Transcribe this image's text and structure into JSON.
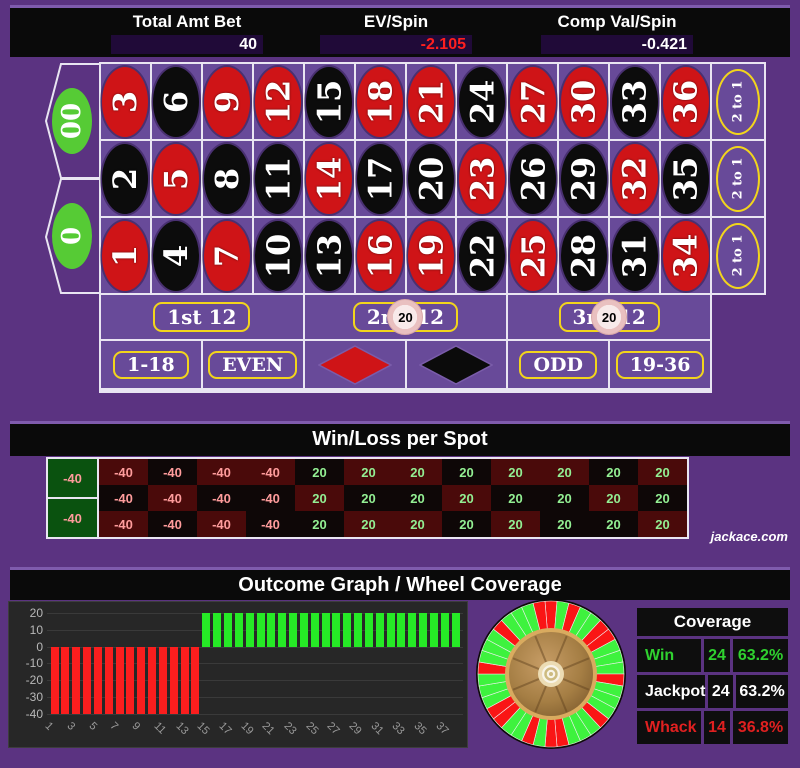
{
  "header": {
    "stats": [
      {
        "label": "Total Amt Bet",
        "value": "40",
        "value_color": "#ffffff"
      },
      {
        "label": "EV/Spin",
        "value": "-2.105",
        "value_color": "#ff1f1f"
      },
      {
        "label": "Comp Val/Spin",
        "value": "-0.421",
        "value_color": "#ffffff"
      }
    ]
  },
  "table": {
    "zeros": [
      {
        "label": "00"
      },
      {
        "label": "0"
      }
    ],
    "rows": [
      [
        {
          "n": "3",
          "c": "red"
        },
        {
          "n": "6",
          "c": "black"
        },
        {
          "n": "9",
          "c": "red"
        },
        {
          "n": "12",
          "c": "red"
        },
        {
          "n": "15",
          "c": "black"
        },
        {
          "n": "18",
          "c": "red"
        },
        {
          "n": "21",
          "c": "red"
        },
        {
          "n": "24",
          "c": "black"
        },
        {
          "n": "27",
          "c": "red"
        },
        {
          "n": "30",
          "c": "red"
        },
        {
          "n": "33",
          "c": "black"
        },
        {
          "n": "36",
          "c": "red"
        }
      ],
      [
        {
          "n": "2",
          "c": "black"
        },
        {
          "n": "5",
          "c": "red"
        },
        {
          "n": "8",
          "c": "black"
        },
        {
          "n": "11",
          "c": "black"
        },
        {
          "n": "14",
          "c": "red"
        },
        {
          "n": "17",
          "c": "black"
        },
        {
          "n": "20",
          "c": "black"
        },
        {
          "n": "23",
          "c": "red"
        },
        {
          "n": "26",
          "c": "black"
        },
        {
          "n": "29",
          "c": "black"
        },
        {
          "n": "32",
          "c": "red"
        },
        {
          "n": "35",
          "c": "black"
        }
      ],
      [
        {
          "n": "1",
          "c": "red"
        },
        {
          "n": "4",
          "c": "black"
        },
        {
          "n": "7",
          "c": "red"
        },
        {
          "n": "10",
          "c": "black"
        },
        {
          "n": "13",
          "c": "black"
        },
        {
          "n": "16",
          "c": "red"
        },
        {
          "n": "19",
          "c": "red"
        },
        {
          "n": "22",
          "c": "black"
        },
        {
          "n": "25",
          "c": "red"
        },
        {
          "n": "28",
          "c": "black"
        },
        {
          "n": "31",
          "c": "black"
        },
        {
          "n": "34",
          "c": "red"
        }
      ]
    ],
    "column_bets": [
      "2 to 1",
      "2 to 1",
      "2 to 1"
    ],
    "dozens": [
      {
        "label": "1st 12",
        "chip": null
      },
      {
        "label": "2nd 12",
        "chip": "20"
      },
      {
        "label": "3rd 12",
        "chip": "20"
      }
    ],
    "outside": [
      {
        "label": "1-18",
        "type": "text"
      },
      {
        "label": "EVEN",
        "type": "text"
      },
      {
        "label": "",
        "type": "red-diamond"
      },
      {
        "label": "",
        "type": "black-diamond"
      },
      {
        "label": "ODD",
        "type": "text"
      },
      {
        "label": "19-36",
        "type": "text"
      }
    ]
  },
  "winloss": {
    "title": "Win/Loss per Spot",
    "zeros": [
      {
        "v": "-40"
      },
      {
        "v": "-40"
      }
    ],
    "rows": [
      [
        {
          "v": "-40",
          "c": "r"
        },
        {
          "v": "-40",
          "c": "b"
        },
        {
          "v": "-40",
          "c": "r"
        },
        {
          "v": "-40",
          "c": "r"
        },
        {
          "v": "20",
          "c": "b"
        },
        {
          "v": "20",
          "c": "r"
        },
        {
          "v": "20",
          "c": "r"
        },
        {
          "v": "20",
          "c": "b"
        },
        {
          "v": "20",
          "c": "r"
        },
        {
          "v": "20",
          "c": "r"
        },
        {
          "v": "20",
          "c": "b"
        },
        {
          "v": "20",
          "c": "r"
        }
      ],
      [
        {
          "v": "-40",
          "c": "b"
        },
        {
          "v": "-40",
          "c": "r"
        },
        {
          "v": "-40",
          "c": "b"
        },
        {
          "v": "-40",
          "c": "b"
        },
        {
          "v": "20",
          "c": "r"
        },
        {
          "v": "20",
          "c": "b"
        },
        {
          "v": "20",
          "c": "b"
        },
        {
          "v": "20",
          "c": "r"
        },
        {
          "v": "20",
          "c": "b"
        },
        {
          "v": "20",
          "c": "b"
        },
        {
          "v": "20",
          "c": "r"
        },
        {
          "v": "20",
          "c": "b"
        }
      ],
      [
        {
          "v": "-40",
          "c": "r"
        },
        {
          "v": "-40",
          "c": "b"
        },
        {
          "v": "-40",
          "c": "r"
        },
        {
          "v": "-40",
          "c": "b"
        },
        {
          "v": "20",
          "c": "b"
        },
        {
          "v": "20",
          "c": "r"
        },
        {
          "v": "20",
          "c": "r"
        },
        {
          "v": "20",
          "c": "b"
        },
        {
          "v": "20",
          "c": "r"
        },
        {
          "v": "20",
          "c": "b"
        },
        {
          "v": "20",
          "c": "b"
        },
        {
          "v": "20",
          "c": "r"
        }
      ]
    ],
    "watermark": "jackace.com"
  },
  "outcome": {
    "title": "Outcome Graph / Wheel Coverage"
  },
  "chart_data": {
    "type": "bar",
    "title": "Outcome Graph / Wheel Coverage",
    "x": [
      1,
      2,
      3,
      4,
      5,
      6,
      7,
      8,
      9,
      10,
      11,
      12,
      13,
      14,
      15,
      16,
      17,
      18,
      19,
      20,
      21,
      22,
      23,
      24,
      25,
      26,
      27,
      28,
      29,
      30,
      31,
      32,
      33,
      34,
      35,
      36,
      37,
      38
    ],
    "values": [
      -40,
      -40,
      -40,
      -40,
      -40,
      -40,
      -40,
      -40,
      -40,
      -40,
      -40,
      -40,
      -40,
      -40,
      20,
      20,
      20,
      20,
      20,
      20,
      20,
      20,
      20,
      20,
      20,
      20,
      20,
      20,
      20,
      20,
      20,
      20,
      20,
      20,
      20,
      20,
      20,
      20
    ],
    "yticks": [
      20,
      10,
      0,
      -10,
      -20,
      -30,
      -40
    ],
    "xtick_labels": [
      1,
      3,
      5,
      7,
      9,
      11,
      13,
      15,
      17,
      19,
      21,
      23,
      25,
      27,
      29,
      31,
      33,
      35,
      37
    ],
    "ylim": [
      -45,
      25
    ],
    "xlabel": "",
    "ylabel": "",
    "grid": true,
    "positive_color": "#26e926",
    "negative_color": "#fb1e1e"
  },
  "wheel": {
    "order": [
      0,
      28,
      9,
      26,
      30,
      11,
      7,
      20,
      32,
      17,
      5,
      22,
      34,
      15,
      3,
      24,
      36,
      13,
      1,
      "00",
      27,
      10,
      25,
      29,
      12,
      8,
      19,
      31,
      18,
      6,
      21,
      33,
      16,
      4,
      23,
      35,
      14,
      2
    ],
    "win_color": "#3ef23e",
    "lose_color": "#fa1515"
  },
  "coverage": {
    "title": "Coverage",
    "rows": [
      {
        "label": "Win",
        "count": "24",
        "pct": "63.2%",
        "color": "#2fd12f"
      },
      {
        "label": "Jackpot",
        "count": "24",
        "pct": "63.2%",
        "color": "#ffffff"
      },
      {
        "label": "Whack",
        "count": "14",
        "pct": "36.8%",
        "color": "#e02020"
      }
    ]
  }
}
